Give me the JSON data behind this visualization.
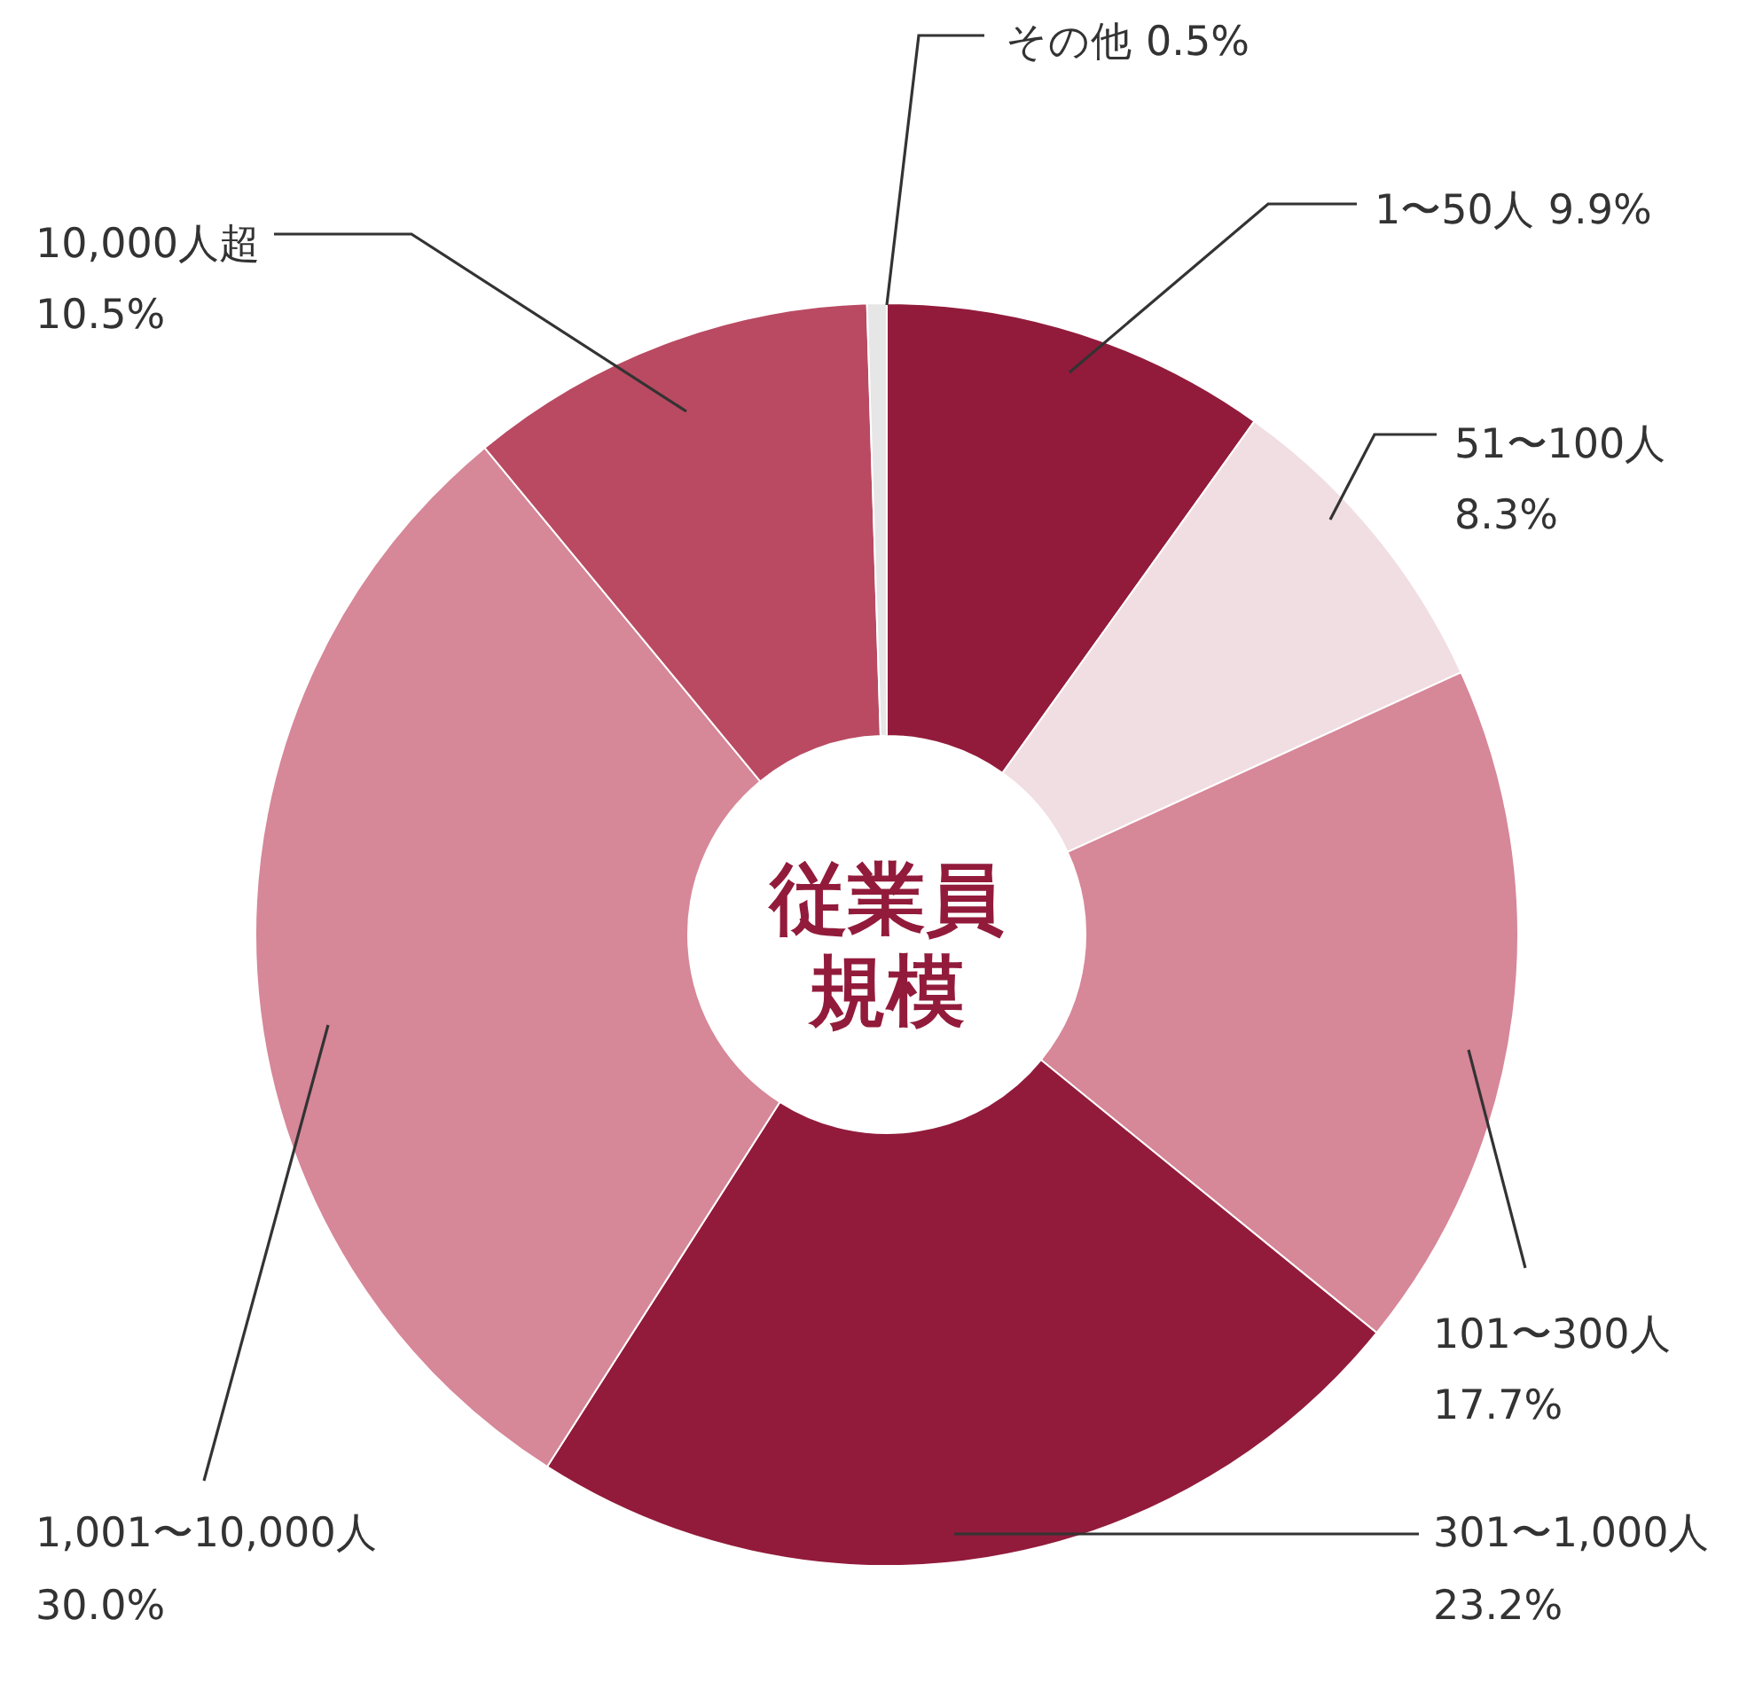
{
  "chart_data": {
    "type": "donut",
    "title": "従業員規模",
    "categories": [
      "1〜50人",
      "51〜100人",
      "101〜300人",
      "301〜1,000人",
      "1,001〜10,000人",
      "10,000人超",
      "その他"
    ],
    "values": [
      9.9,
      8.3,
      17.7,
      23.2,
      30.0,
      10.5,
      0.5
    ],
    "colors": [
      "#921b3b",
      "#f1dee2",
      "#d68798",
      "#921b3b",
      "#d68798",
      "#b94a62",
      "#e6e6e6"
    ],
    "value_labels": [
      "9.9%",
      "8.3%",
      "17.7%",
      "23.2%",
      "30.0%",
      "10.5%",
      "0.5%"
    ]
  }
}
